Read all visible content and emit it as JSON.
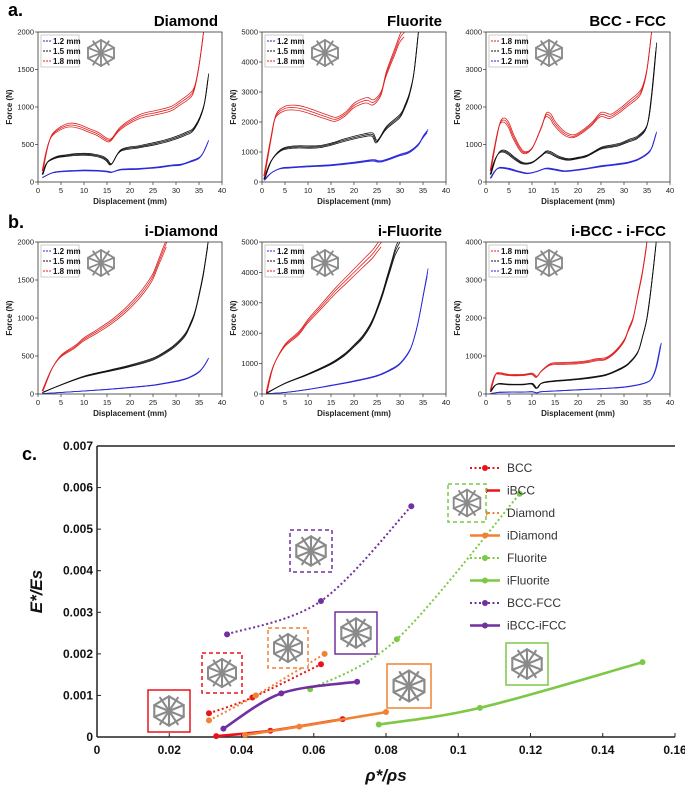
{
  "panel_labels": {
    "a": "a.",
    "b": "b.",
    "c": "c."
  },
  "colors": {
    "1.2 mm": "#2a2ad8",
    "1.5 mm": "#111111",
    "1.8 mm": "#e02020",
    "BCC": "#e8141c",
    "Diamond": "#f08232",
    "Fluorite": "#7dc845",
    "BCC-FCC": "#7030a0"
  },
  "chart_data": [
    {
      "id": "a1",
      "type": "line",
      "title": "Diamond",
      "xlabel": "Displacement (mm)",
      "ylabel": "Force (N)",
      "xlim": [
        0,
        40
      ],
      "ylim": [
        0,
        2000
      ],
      "xticks": [
        0,
        5,
        10,
        15,
        20,
        25,
        30,
        35,
        40
      ],
      "yticks": [
        0,
        500,
        1000,
        1500,
        2000
      ],
      "legend": [
        "1.2 mm",
        "1.5 mm",
        "1.8 mm"
      ],
      "series": [
        {
          "name": "1.2 mm",
          "x": [
            1,
            3,
            5,
            8,
            10,
            13,
            15,
            16,
            18,
            22,
            26,
            29,
            31,
            33,
            35,
            36,
            37
          ],
          "y": [
            60,
            120,
            140,
            150,
            155,
            150,
            140,
            130,
            165,
            175,
            195,
            220,
            230,
            270,
            320,
            400,
            540
          ]
        },
        {
          "name": "1.5 mm",
          "x": [
            1,
            2,
            4,
            6,
            8,
            10,
            12,
            14,
            15,
            16,
            18,
            22,
            26,
            29,
            32,
            34,
            36,
            37
          ],
          "y": [
            100,
            260,
            330,
            350,
            365,
            370,
            360,
            330,
            290,
            240,
            420,
            470,
            520,
            570,
            640,
            720,
            1000,
            1400
          ]
        },
        {
          "name": "1.8 mm",
          "x": [
            1,
            2,
            3,
            5,
            7,
            9,
            11,
            13,
            15,
            16,
            18,
            22,
            26,
            29,
            31,
            33,
            34,
            35,
            36
          ],
          "y": [
            150,
            450,
            620,
            720,
            760,
            740,
            690,
            640,
            560,
            570,
            720,
            870,
            930,
            980,
            1060,
            1150,
            1250,
            1550,
            2000
          ]
        }
      ]
    },
    {
      "id": "a2",
      "type": "line",
      "title": "Fluorite",
      "xlabel": "Displacement (mm)",
      "ylabel": "Force (N)",
      "xlim": [
        0,
        40
      ],
      "ylim": [
        0,
        5000
      ],
      "xticks": [
        0,
        5,
        10,
        15,
        20,
        25,
        30,
        35,
        40
      ],
      "yticks": [
        0,
        1000,
        2000,
        3000,
        4000,
        5000
      ],
      "legend": [
        "1.2 mm",
        "1.5 mm",
        "1.8 mm"
      ],
      "series": [
        {
          "name": "1.2 mm",
          "x": [
            0.5,
            2,
            4,
            6,
            10,
            15,
            20,
            24,
            26,
            30,
            32,
            34,
            35,
            36
          ],
          "y": [
            60,
            300,
            450,
            480,
            520,
            560,
            640,
            720,
            690,
            900,
            1000,
            1250,
            1500,
            1700
          ]
        },
        {
          "name": "1.5 mm",
          "x": [
            0.5,
            2,
            4,
            6,
            8,
            12,
            15,
            18,
            22,
            24,
            25,
            27,
            30,
            31,
            32,
            33,
            34
          ],
          "y": [
            100,
            700,
            1050,
            1150,
            1170,
            1170,
            1260,
            1400,
            1550,
            1580,
            1350,
            1800,
            2200,
            2500,
            2900,
            3600,
            5000
          ]
        },
        {
          "name": "1.8 mm",
          "x": [
            0.5,
            2,
            3,
            5,
            7,
            9,
            11,
            14,
            16,
            18,
            20,
            22,
            23,
            24,
            25,
            26,
            27,
            29,
            30,
            31
          ],
          "y": [
            200,
            1500,
            2200,
            2450,
            2480,
            2430,
            2330,
            2170,
            2090,
            2250,
            2550,
            2700,
            2720,
            2650,
            2750,
            3000,
            3600,
            4400,
            4800,
            5000
          ]
        }
      ]
    },
    {
      "id": "a3",
      "type": "line",
      "title": "BCC - FCC",
      "xlabel": "Displacement (mm)",
      "ylabel": "Force (N)",
      "xlim": [
        0,
        40
      ],
      "ylim": [
        0,
        4000
      ],
      "xticks": [
        0,
        5,
        10,
        15,
        20,
        25,
        30,
        35,
        40
      ],
      "yticks": [
        0,
        1000,
        2000,
        3000,
        4000
      ],
      "legend": [
        "1.8 mm",
        "1.5 mm",
        "1.2 mm"
      ],
      "series": [
        {
          "name": "1.8 mm",
          "x": [
            1,
            2,
            3,
            4,
            5,
            6,
            8,
            10,
            12,
            13,
            14,
            15,
            17,
            19,
            21,
            23,
            25,
            27,
            29,
            31,
            33,
            34,
            35,
            36
          ],
          "y": [
            300,
            1000,
            1550,
            1650,
            1500,
            1200,
            800,
            900,
            1450,
            1780,
            1750,
            1550,
            1300,
            1220,
            1350,
            1550,
            1800,
            1750,
            1900,
            2100,
            2300,
            2500,
            3000,
            4000
          ]
        },
        {
          "name": "1.5 mm",
          "x": [
            1,
            2,
            3,
            4,
            5,
            6,
            8,
            10,
            12,
            13,
            14,
            16,
            18,
            20,
            22,
            25,
            27,
            29,
            31,
            33,
            35,
            36,
            37
          ],
          "y": [
            200,
            600,
            800,
            820,
            750,
            650,
            500,
            520,
            700,
            800,
            780,
            650,
            600,
            640,
            700,
            900,
            950,
            1000,
            1100,
            1200,
            1500,
            2300,
            3600
          ]
        },
        {
          "name": "1.2 mm",
          "x": [
            1,
            2,
            3,
            5,
            7,
            9,
            11,
            13,
            15,
            17,
            19,
            21,
            23,
            25,
            27,
            29,
            31,
            33,
            35,
            36,
            37
          ],
          "y": [
            100,
            300,
            380,
            350,
            280,
            230,
            280,
            360,
            330,
            290,
            310,
            340,
            380,
            420,
            450,
            480,
            520,
            600,
            750,
            900,
            1300
          ]
        }
      ]
    },
    {
      "id": "b1",
      "type": "line",
      "title": "i-Diamond",
      "xlabel": "Displacement (mm)",
      "ylabel": "Force (N)",
      "xlim": [
        0,
        40
      ],
      "ylim": [
        0,
        2000
      ],
      "xticks": [
        0,
        5,
        10,
        15,
        20,
        25,
        30,
        35,
        40
      ],
      "yticks": [
        0,
        500,
        1000,
        1500,
        2000
      ],
      "legend": [
        "1.2 mm",
        "1.5 mm",
        "1.8 mm"
      ],
      "series": [
        {
          "name": "1.2 mm",
          "x": [
            1,
            5,
            10,
            15,
            20,
            25,
            28,
            31,
            33,
            35,
            36,
            37
          ],
          "y": [
            5,
            20,
            40,
            60,
            85,
            115,
            145,
            180,
            220,
            290,
            360,
            460
          ]
        },
        {
          "name": "1.5 mm",
          "x": [
            1,
            5,
            10,
            15,
            20,
            25,
            28,
            30,
            32,
            33,
            34,
            35,
            36,
            37
          ],
          "y": [
            20,
            120,
            230,
            300,
            370,
            460,
            560,
            650,
            780,
            900,
            1050,
            1300,
            1600,
            2000
          ]
        },
        {
          "name": "1.8 mm",
          "x": [
            1,
            3,
            5,
            8,
            10,
            13,
            16,
            19,
            22,
            24,
            25,
            26,
            27,
            28
          ],
          "y": [
            40,
            330,
            500,
            620,
            720,
            830,
            950,
            1100,
            1290,
            1450,
            1550,
            1700,
            1850,
            2000
          ]
        }
      ]
    },
    {
      "id": "b2",
      "type": "line",
      "title": "i-Fluorite",
      "xlabel": "Displacement (mm)",
      "ylabel": "Force (N)",
      "xlim": [
        0,
        40
      ],
      "ylim": [
        0,
        5000
      ],
      "xticks": [
        0,
        5,
        10,
        15,
        20,
        25,
        30,
        35,
        40
      ],
      "yticks": [
        0,
        1000,
        2000,
        3000,
        4000,
        5000
      ],
      "legend": [
        "1.2 mm",
        "1.5 mm",
        "1.8 mm"
      ],
      "series": [
        {
          "name": "1.2 mm",
          "x": [
            1,
            5,
            10,
            15,
            20,
            25,
            28,
            30,
            32,
            33,
            34,
            35,
            36
          ],
          "y": [
            10,
            50,
            150,
            280,
            420,
            600,
            800,
            1000,
            1400,
            1800,
            2400,
            3200,
            4000
          ]
        },
        {
          "name": "1.5 mm",
          "x": [
            1,
            5,
            10,
            15,
            18,
            20,
            22,
            24,
            26,
            27,
            28,
            29,
            30
          ],
          "y": [
            30,
            350,
            650,
            1000,
            1300,
            1580,
            1900,
            2400,
            3200,
            3700,
            4200,
            4700,
            5000
          ]
        },
        {
          "name": "1.8 mm",
          "x": [
            1,
            2,
            3,
            5,
            8,
            10,
            13,
            16,
            18,
            20,
            22,
            24,
            25,
            26
          ],
          "y": [
            50,
            700,
            1100,
            1600,
            2000,
            2400,
            2900,
            3400,
            3700,
            4000,
            4300,
            4600,
            4800,
            5000
          ]
        }
      ]
    },
    {
      "id": "b3",
      "type": "line",
      "title": "i-BCC - i-FCC",
      "xlabel": "Displacement (mm)",
      "ylabel": "Force (N)",
      "xlim": [
        0,
        40
      ],
      "ylim": [
        0,
        4000
      ],
      "xticks": [
        0,
        5,
        10,
        15,
        20,
        25,
        30,
        35,
        40
      ],
      "yticks": [
        0,
        1000,
        2000,
        3000,
        4000
      ],
      "legend": [
        "1.8 mm",
        "1.5 mm",
        "1.2 mm"
      ],
      "series": [
        {
          "name": "1.8 mm",
          "x": [
            1,
            2,
            3,
            5,
            8,
            10,
            11,
            12,
            14,
            16,
            20,
            22,
            24,
            26,
            28,
            30,
            31,
            32,
            33,
            34,
            35
          ],
          "y": [
            100,
            500,
            540,
            500,
            500,
            530,
            450,
            600,
            780,
            800,
            820,
            850,
            900,
            930,
            1100,
            1400,
            1700,
            2000,
            2600,
            3200,
            4000
          ]
        },
        {
          "name": "1.5 mm",
          "x": [
            1,
            2,
            3,
            5,
            8,
            10,
            11,
            12,
            14,
            18,
            22,
            26,
            29,
            31,
            33,
            34,
            35,
            36,
            37
          ],
          "y": [
            60,
            230,
            270,
            250,
            250,
            270,
            150,
            280,
            330,
            370,
            420,
            500,
            650,
            800,
            1100,
            1500,
            2000,
            2900,
            4000
          ]
        },
        {
          "name": "1.2 mm",
          "x": [
            1,
            2,
            3,
            5,
            8,
            10,
            11,
            12,
            15,
            20,
            25,
            30,
            33,
            35,
            36,
            37,
            38
          ],
          "y": [
            10,
            30,
            45,
            50,
            50,
            60,
            30,
            60,
            80,
            110,
            140,
            180,
            240,
            310,
            400,
            700,
            1300
          ]
        }
      ]
    },
    {
      "id": "c",
      "type": "scatter",
      "title": "",
      "xlabel": "ρ*/ρs",
      "ylabel": "E*/Es",
      "xlim": [
        0,
        0.16
      ],
      "ylim": [
        0,
        0.007
      ],
      "xticks": [
        0,
        0.02,
        0.04,
        0.06,
        0.08,
        0.1,
        0.12,
        0.14,
        0.16
      ],
      "yticks": [
        0,
        0.001,
        0.002,
        0.003,
        0.004,
        0.005,
        0.006,
        0.007
      ],
      "xticklabels": [
        "0",
        "0.02",
        "0.04",
        "0.06",
        "0.08",
        "0.1",
        "0.12",
        "0.14",
        "0.16"
      ],
      "yticklabels": [
        "0",
        "0.001",
        "0.002",
        "0.003",
        "0.004",
        "0.005",
        "0.006",
        "0.007"
      ],
      "series": [
        {
          "name": "BCC",
          "style": "dotted",
          "color": "#e8141c",
          "x": [
            0.031,
            0.043,
            0.062
          ],
          "y": [
            0.00057,
            0.00095,
            0.00175
          ]
        },
        {
          "name": "iBCC",
          "style": "solid",
          "color": "#e8141c",
          "x": [
            0.033,
            0.048,
            0.068
          ],
          "y": [
            2e-05,
            0.00015,
            0.00043
          ]
        },
        {
          "name": "Diamond",
          "style": "dotted",
          "color": "#f08232",
          "x": [
            0.031,
            0.044,
            0.063
          ],
          "y": [
            0.0004,
            0.001,
            0.002
          ]
        },
        {
          "name": "iDiamond",
          "style": "solid",
          "color": "#f08232",
          "x": [
            0.041,
            0.056,
            0.08
          ],
          "y": [
            5e-05,
            0.00025,
            0.0006
          ]
        },
        {
          "name": "Fluorite",
          "style": "dotted",
          "color": "#7dc845",
          "x": [
            0.059,
            0.083,
            0.117
          ],
          "y": [
            0.00115,
            0.00235,
            0.00585
          ]
        },
        {
          "name": "iFluorite",
          "style": "solid",
          "color": "#7dc845",
          "x": [
            0.078,
            0.106,
            0.151
          ],
          "y": [
            0.0003,
            0.0007,
            0.0018
          ]
        },
        {
          "name": "BCC-FCC",
          "style": "dotted",
          "color": "#7030a0",
          "x": [
            0.036,
            0.062,
            0.087
          ],
          "y": [
            0.00247,
            0.00327,
            0.00555
          ]
        },
        {
          "name": "iBCC-iFCC",
          "style": "solid",
          "color": "#7030a0",
          "x": [
            0.035,
            0.051,
            0.072
          ],
          "y": [
            0.0002,
            0.00105,
            0.00133
          ]
        }
      ]
    }
  ]
}
